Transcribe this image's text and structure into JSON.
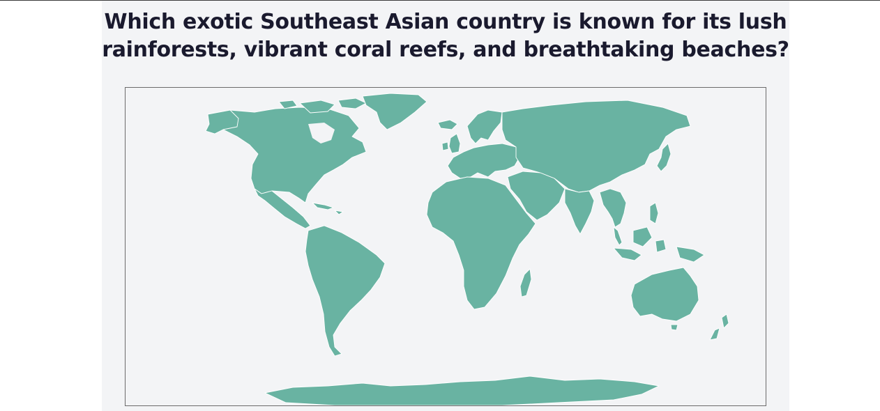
{
  "quiz": {
    "question": "Which exotic Southeast Asian country is known for its lush rainforests, vibrant coral reefs, and breathtaking beaches?"
  },
  "map": {
    "land_color": "#69b3a2",
    "border_color": "#ffffff",
    "background_color": "#f3f4f6",
    "regions": [
      "north-america",
      "greenland",
      "central-america",
      "caribbean",
      "south-america",
      "europe",
      "uk",
      "ireland",
      "iceland",
      "scandinavia",
      "africa",
      "madagascar",
      "middle-east",
      "russia-asia",
      "india",
      "southeast-asia",
      "japan",
      "indonesia",
      "philippines",
      "australia",
      "new-zealand",
      "antarctica"
    ]
  }
}
